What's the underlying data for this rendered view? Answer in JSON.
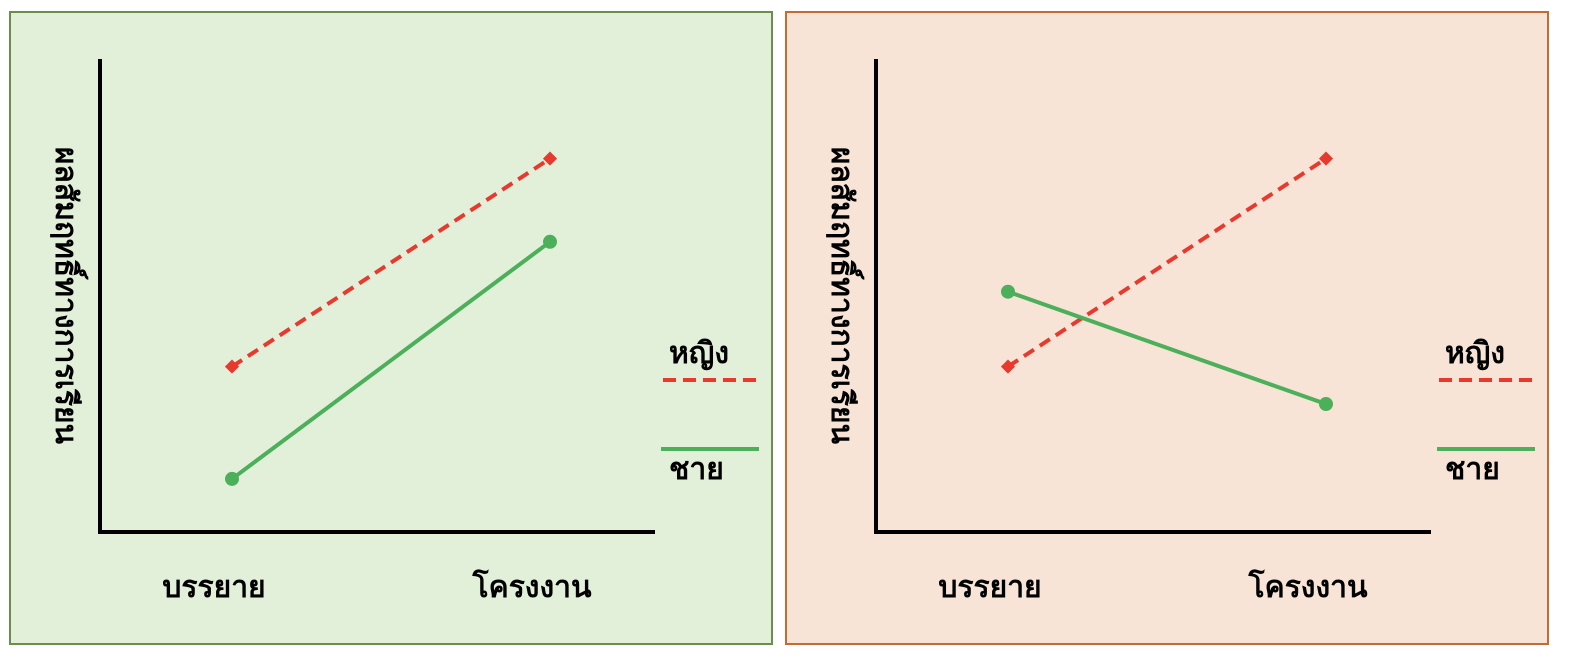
{
  "chart_data": [
    {
      "type": "line",
      "background": "#e2efd9",
      "border_color": "#6a8f4a",
      "categories": [
        "บรรยาย",
        "โครงงาน"
      ],
      "ylabel": "ผลสัมฤทธิ์ทางการเรียน",
      "xlabel": "",
      "legend_position": "right",
      "series": [
        {
          "name": "หญิง",
          "values": [
            4.0,
            9.0
          ],
          "color": "#e8392e",
          "style": "dashed"
        },
        {
          "name": "ชาย",
          "values": [
            1.3,
            7.0
          ],
          "color": "#4caf5a",
          "style": "solid"
        }
      ],
      "ylim": [
        0,
        10
      ]
    },
    {
      "type": "line",
      "background": "#f7e4d6",
      "border_color": "#c46a35",
      "categories": [
        "บรรยาย",
        "โครงงาน"
      ],
      "ylabel": "ผลสัมฤทธิ์ทางการเรียน",
      "xlabel": "",
      "legend_position": "right",
      "series": [
        {
          "name": "หญิง",
          "values": [
            4.0,
            9.0
          ],
          "color": "#e8392e",
          "style": "dashed"
        },
        {
          "name": "ชาย",
          "values": [
            5.8,
            3.1
          ],
          "color": "#4caf5a",
          "style": "solid"
        }
      ],
      "ylim": [
        0,
        10
      ]
    }
  ]
}
